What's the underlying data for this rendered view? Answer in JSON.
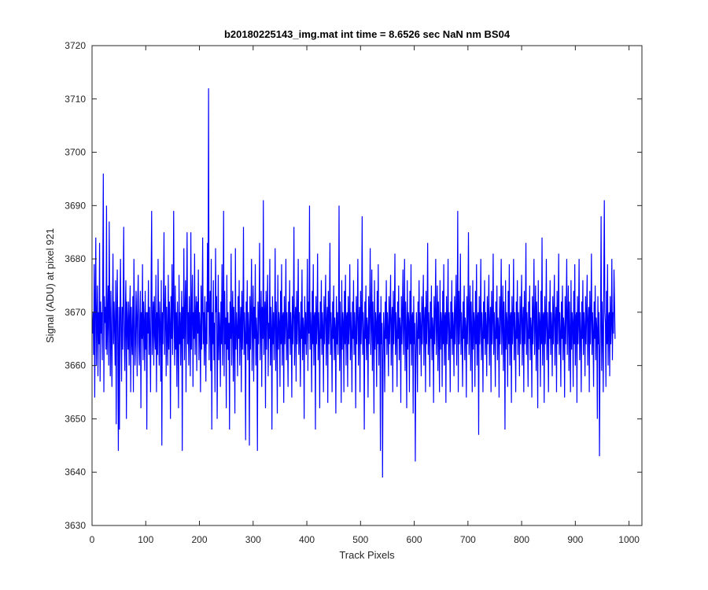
{
  "chart_data": {
    "type": "line",
    "title": "b20180225143_img.mat int time = 8.6526 sec  NaN nm BS04",
    "xlabel": "Track Pixels",
    "ylabel": "Signal (ADU) at pixel 921",
    "xlim": [
      0,
      1024
    ],
    "ylim": [
      3630,
      3720
    ],
    "xticks": [
      0,
      100,
      200,
      300,
      400,
      500,
      600,
      700,
      800,
      900,
      1000
    ],
    "yticks": [
      3630,
      3640,
      3650,
      3660,
      3670,
      3680,
      3690,
      3700,
      3710,
      3720
    ],
    "grid": false,
    "legend": "none",
    "series": [
      {
        "color": "#0000ff",
        "x_start": 1,
        "x_step": 1,
        "values": [
          3666,
          3670,
          3662,
          3679,
          3654,
          3672,
          3684,
          3660,
          3668,
          3675,
          3658,
          3670,
          3664,
          3683,
          3657,
          3672,
          3666,
          3670,
          3661,
          3678,
          3696,
          3655,
          3673,
          3668,
          3671,
          3663,
          3690,
          3662,
          3669,
          3675,
          3660,
          3687,
          3670,
          3658,
          3674,
          3665,
          3656,
          3670,
          3681,
          3664,
          3672,
          3667,
          3660,
          3676,
          3649,
          3670,
          3678,
          3663,
          3644,
          3671,
          3648,
          3669,
          3680,
          3666,
          3657,
          3671,
          3663,
          3673,
          3686,
          3665,
          3659,
          3670,
          3676,
          3650,
          3672,
          3668,
          3663,
          3672,
          3660,
          3669,
          3675,
          3655,
          3671,
          3665,
          3662,
          3673,
          3655,
          3680,
          3670,
          3660,
          3664,
          3674,
          3669,
          3658,
          3672,
          3677,
          3664,
          3660,
          3669,
          3674,
          3652,
          3670,
          3665,
          3679,
          3661,
          3672,
          3668,
          3659,
          3674,
          3663,
          3670,
          3648,
          3670,
          3666,
          3676,
          3662,
          3671,
          3665,
          3655,
          3675,
          3689,
          3662,
          3668,
          3672,
          3660,
          3673,
          3666,
          3663,
          3677,
          3655,
          3670,
          3662,
          3680,
          3668,
          3660,
          3672,
          3667,
          3657,
          3676,
          3645,
          3670,
          3664,
          3673,
          3685,
          3662,
          3669,
          3675,
          3658,
          3671,
          3666,
          3660,
          3677,
          3663,
          3672,
          3668,
          3650,
          3673,
          3665,
          3679,
          3662,
          3670,
          3689,
          3667,
          3660,
          3675,
          3663,
          3670,
          3656,
          3672,
          3666,
          3652,
          3677,
          3664,
          3670,
          3660,
          3668,
          3674,
          3644,
          3671,
          3665,
          3682,
          3661,
          3669,
          3676,
          3655,
          3672,
          3685,
          3664,
          3670,
          3660,
          3673,
          3667,
          3658,
          3685,
          3663,
          3670,
          3677,
          3656,
          3670,
          3665,
          3681,
          3662,
          3669,
          3673,
          3659,
          3672,
          3666,
          3678,
          3661,
          3670,
          3667,
          3655,
          3675,
          3663,
          3671,
          3684,
          3664,
          3670,
          3660,
          3673,
          3666,
          3657,
          3672,
          3664,
          3683,
          3670,
          3712,
          3661,
          3668,
          3674,
          3659,
          3680,
          3648,
          3670,
          3664,
          3676,
          3661,
          3668,
          3655,
          3682,
          3670,
          3673,
          3650,
          3663,
          3677,
          3661,
          3670,
          3667,
          3656,
          3672,
          3664,
          3679,
          3660,
          3669,
          3689,
          3658,
          3674,
          3664,
          3669,
          3652,
          3677,
          3663,
          3670,
          3661,
          3668,
          3648,
          3672,
          3665,
          3681,
          3660,
          3669,
          3674,
          3657,
          3671,
          3666,
          3651,
          3682,
          3663,
          3670,
          3667,
          3658,
          3673,
          3665,
          3676,
          3660,
          3668,
          3671,
          3655,
          3674,
          3663,
          3669,
          3686,
          3662,
          3670,
          3666,
          3646,
          3672,
          3664,
          3676,
          3661,
          3670,
          3667,
          3645,
          3673,
          3663,
          3670,
          3680,
          3659,
          3668,
          3675,
          3657,
          3671,
          3665,
          3679,
          3660,
          3669,
          3666,
          3644,
          3672,
          3664,
          3670,
          3683,
          3661,
          3668,
          3674,
          3656,
          3671,
          3665,
          3691,
          3662,
          3669,
          3672,
          3652,
          3674,
          3663,
          3670,
          3677,
          3658,
          3668,
          3665,
          3680,
          3660,
          3671,
          3667,
          3648,
          3673,
          3664,
          3670,
          3661,
          3668,
          3682,
          3659,
          3672,
          3666,
          3651,
          3677,
          3663,
          3670,
          3668,
          3656,
          3674,
          3664,
          3679,
          3660,
          3669,
          3670,
          3653,
          3673,
          3664,
          3668,
          3680,
          3661,
          3670,
          3666,
          3656,
          3672,
          3665,
          3676,
          3662,
          3670,
          3667,
          3654,
          3673,
          3664,
          3670,
          3686,
          3660,
          3668,
          3671,
          3657,
          3674,
          3664,
          3669,
          3680,
          3662,
          3670,
          3666,
          3656,
          3672,
          3665,
          3678,
          3661,
          3669,
          3667,
          3650,
          3673,
          3664,
          3670,
          3662,
          3668,
          3680,
          3659,
          3672,
          3666,
          3690,
          3663,
          3670,
          3667,
          3655,
          3674,
          3664,
          3679,
          3660,
          3669,
          3670,
          3648,
          3673,
          3664,
          3668,
          3681,
          3661,
          3670,
          3666,
          3652,
          3672,
          3665,
          3676,
          3662,
          3670,
          3667,
          3655,
          3673,
          3664,
          3670,
          3677,
          3660,
          3668,
          3671,
          3653,
          3674,
          3664,
          3669,
          3683,
          3662,
          3670,
          3666,
          3655,
          3672,
          3665,
          3675,
          3661,
          3669,
          3667,
          3651,
          3673,
          3664,
          3670,
          3662,
          3668,
          3690,
          3659,
          3672,
          3666,
          3653,
          3676,
          3663,
          3670,
          3668,
          3655,
          3674,
          3664,
          3677,
          3660,
          3669,
          3670,
          3656,
          3673,
          3664,
          3668,
          3679,
          3661,
          3670,
          3666,
          3655,
          3672,
          3665,
          3676,
          3662,
          3670,
          3667,
          3652,
          3673,
          3664,
          3670,
          3680,
          3660,
          3668,
          3671,
          3655,
          3674,
          3664,
          3669,
          3688,
          3662,
          3670,
          3666,
          3648,
          3672,
          3665,
          3675,
          3661,
          3669,
          3667,
          3654,
          3673,
          3664,
          3670,
          3682,
          3662,
          3668,
          3678,
          3659,
          3672,
          3666,
          3651,
          3676,
          3663,
          3670,
          3668,
          3656,
          3674,
          3664,
          3679,
          3660,
          3669,
          3670,
          3644,
          3673,
          3664,
          3668,
          3639,
          3661,
          3670,
          3666,
          3655,
          3672,
          3665,
          3676,
          3662,
          3670,
          3667,
          3658,
          3673,
          3664,
          3670,
          3677,
          3660,
          3668,
          3671,
          3655,
          3674,
          3664,
          3669,
          3681,
          3662,
          3670,
          3666,
          3656,
          3672,
          3665,
          3675,
          3661,
          3669,
          3667,
          3653,
          3673,
          3664,
          3670,
          3678,
          3662,
          3668,
          3680,
          3659,
          3672,
          3666,
          3652,
          3676,
          3663,
          3670,
          3668,
          3655,
          3674,
          3664,
          3679,
          3660,
          3669,
          3670,
          3651,
          3673,
          3664,
          3668,
          3642,
          3661,
          3670,
          3666,
          3655,
          3672,
          3665,
          3676,
          3662,
          3670,
          3667,
          3658,
          3673,
          3664,
          3670,
          3677,
          3660,
          3668,
          3671,
          3655,
          3674,
          3664,
          3669,
          3683,
          3662,
          3670,
          3666,
          3656,
          3672,
          3665,
          3675,
          3661,
          3669,
          3667,
          3653,
          3673,
          3664,
          3670,
          3680,
          3662,
          3668,
          3675,
          3659,
          3672,
          3666,
          3655,
          3676,
          3663,
          3670,
          3668,
          3656,
          3674,
          3664,
          3679,
          3660,
          3669,
          3670,
          3653,
          3673,
          3664,
          3668,
          3680,
          3661,
          3670,
          3666,
          3655,
          3672,
          3665,
          3676,
          3662,
          3670,
          3667,
          3658,
          3673,
          3664,
          3670,
          3677,
          3660,
          3668,
          3689,
          3655,
          3674,
          3664,
          3669,
          3681,
          3662,
          3670,
          3666,
          3656,
          3672,
          3665,
          3675,
          3661,
          3669,
          3667,
          3654,
          3673,
          3664,
          3670,
          3685,
          3662,
          3668,
          3675,
          3659,
          3672,
          3666,
          3655,
          3676,
          3663,
          3670,
          3668,
          3656,
          3674,
          3664,
          3679,
          3660,
          3669,
          3670,
          3647,
          3673,
          3664,
          3668,
          3680,
          3661,
          3670,
          3666,
          3655,
          3672,
          3665,
          3676,
          3662,
          3670,
          3667,
          3658,
          3673,
          3664,
          3670,
          3677,
          3660,
          3668,
          3671,
          3655,
          3674,
          3664,
          3669,
          3681,
          3662,
          3670,
          3666,
          3656,
          3672,
          3665,
          3675,
          3661,
          3669,
          3667,
          3654,
          3673,
          3664,
          3670,
          3680,
          3662,
          3668,
          3675,
          3659,
          3672,
          3666,
          3648,
          3676,
          3663,
          3670,
          3668,
          3656,
          3674,
          3664,
          3679,
          3660,
          3669,
          3670,
          3653,
          3673,
          3664,
          3668,
          3680,
          3661,
          3670,
          3666,
          3655,
          3672,
          3665,
          3676,
          3662,
          3670,
          3667,
          3658,
          3673,
          3664,
          3670,
          3677,
          3660,
          3668,
          3671,
          3655,
          3674,
          3664,
          3669,
          3683,
          3662,
          3670,
          3666,
          3656,
          3672,
          3665,
          3675,
          3661,
          3669,
          3667,
          3654,
          3673,
          3664,
          3670,
          3680,
          3662,
          3668,
          3675,
          3659,
          3672,
          3666,
          3652,
          3676,
          3663,
          3670,
          3668,
          3656,
          3674,
          3664,
          3684,
          3660,
          3669,
          3670,
          3653,
          3673,
          3664,
          3668,
          3680,
          3661,
          3670,
          3666,
          3655,
          3672,
          3665,
          3676,
          3662,
          3670,
          3667,
          3658,
          3673,
          3664,
          3670,
          3677,
          3660,
          3668,
          3671,
          3655,
          3674,
          3664,
          3669,
          3681,
          3662,
          3670,
          3666,
          3656,
          3672,
          3665,
          3675,
          3661,
          3669,
          3667,
          3654,
          3673,
          3664,
          3670,
          3680,
          3662,
          3668,
          3675,
          3659,
          3672,
          3666,
          3655,
          3676,
          3663,
          3670,
          3668,
          3656,
          3674,
          3664,
          3679,
          3660,
          3669,
          3670,
          3653,
          3673,
          3664,
          3668,
          3680,
          3661,
          3670,
          3666,
          3655,
          3672,
          3665,
          3676,
          3662,
          3670,
          3667,
          3658,
          3673,
          3664,
          3670,
          3677,
          3660,
          3668,
          3671,
          3655,
          3674,
          3664,
          3669,
          3681,
          3662,
          3670,
          3666,
          3656,
          3672,
          3665,
          3675,
          3661,
          3669,
          3667,
          3650,
          3673,
          3664,
          3670,
          3643,
          3662,
          3668,
          3688,
          3659,
          3672,
          3666,
          3655,
          3676,
          3691,
          3670,
          3668,
          3656,
          3674,
          3664,
          3679,
          3660,
          3669,
          3670,
          3658,
          3673,
          3664,
          3668,
          3680,
          3661,
          3670,
          3666,
          3678,
          3672,
          3665
        ]
      }
    ]
  }
}
